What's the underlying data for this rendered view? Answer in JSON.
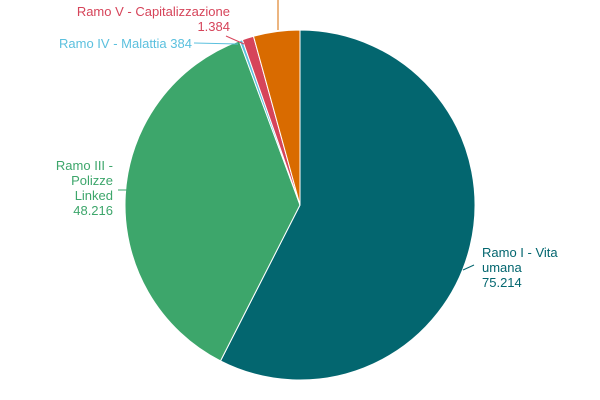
{
  "chart_data": {
    "type": "pie",
    "categories": [
      "Ramo I - Vita umana",
      "Ramo III - Polizze Linked",
      "Ramo IV - Malattia",
      "Ramo V - Capitalizzazione",
      null
    ],
    "values": [
      75214,
      48216,
      384,
      1384,
      5600
    ],
    "value_labels": [
      "75.214",
      "48.216",
      "384",
      "1.384",
      null
    ],
    "colors": [
      "#03666f",
      "#3da66b",
      "#5bc0de",
      "#d6445a",
      "#d96b00"
    ]
  }
}
